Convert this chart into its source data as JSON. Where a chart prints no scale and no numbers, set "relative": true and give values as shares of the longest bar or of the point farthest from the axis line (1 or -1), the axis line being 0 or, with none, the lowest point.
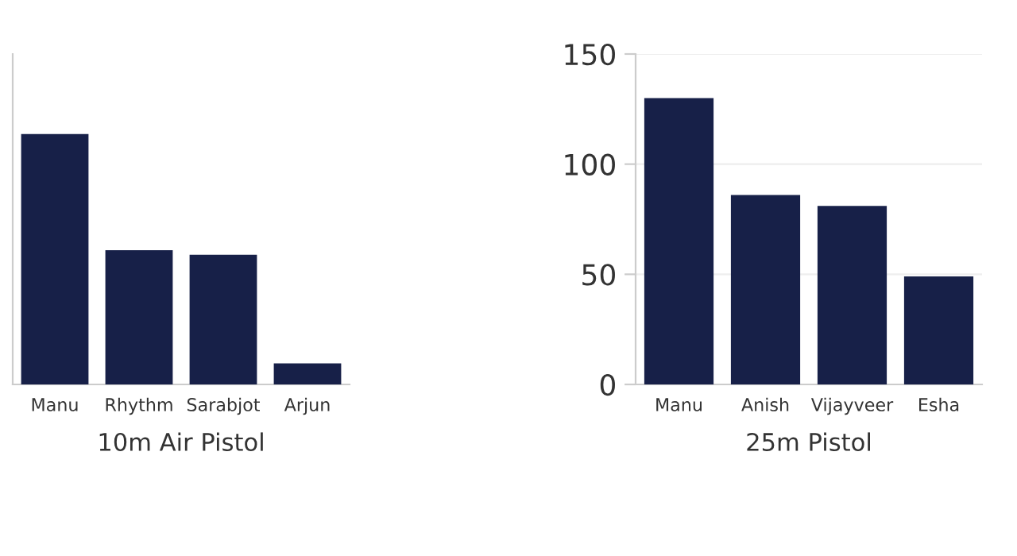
{
  "chart_data": [
    {
      "type": "bar",
      "xlabel": "10m Air Pistol",
      "categories": [
        "Manu",
        "Rhythm",
        "Sarabjot",
        "Arjun"
      ],
      "values": [
        1,
        0.536,
        0.518,
        0.084
      ],
      "color": "#172048",
      "relative": true
    },
    {
      "type": "bar",
      "xlabel": "25m Pistol",
      "categories": [
        "Manu",
        "Anish",
        "Vijayveer",
        "Esha"
      ],
      "values": [
        130,
        86,
        81,
        49
      ],
      "color": "#172048",
      "ylim": [
        0,
        150
      ],
      "yticks": [
        0,
        50,
        100,
        150
      ],
      "grid": "y"
    }
  ]
}
